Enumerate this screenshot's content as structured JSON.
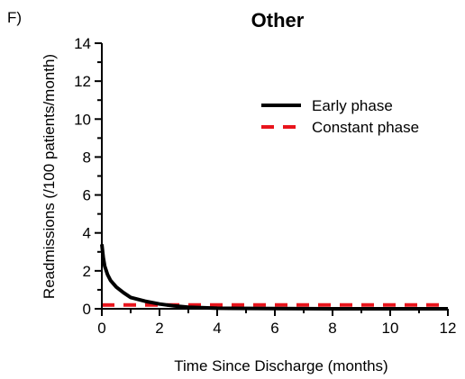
{
  "panel_label": "F)",
  "chart_data": {
    "type": "line",
    "title": "Other",
    "xlabel": "Time Since Discharge (months)",
    "ylabel": "Readmissions (/100 patients/month)",
    "xlim": [
      0,
      12
    ],
    "ylim": [
      0,
      14
    ],
    "x_ticks": [
      0,
      2,
      4,
      6,
      8,
      10,
      12
    ],
    "y_ticks": [
      0,
      2,
      4,
      6,
      8,
      10,
      12,
      14
    ],
    "legend_position": "top-right",
    "series": [
      {
        "name": "Early phase",
        "color": "#000000",
        "style": "solid",
        "x": [
          0.0,
          0.05,
          0.1,
          0.2,
          0.3,
          0.5,
          0.75,
          1.0,
          1.5,
          2.0,
          2.5,
          3.0,
          4.0,
          6.0,
          8.0,
          10.0,
          12.0
        ],
        "y": [
          3.4,
          2.7,
          2.25,
          1.8,
          1.5,
          1.15,
          0.85,
          0.6,
          0.4,
          0.25,
          0.15,
          0.08,
          0.03,
          0.01,
          0.0,
          0.0,
          0.0
        ]
      },
      {
        "name": "Constant phase",
        "color": "#e8141c",
        "style": "dashed",
        "x": [
          0,
          12
        ],
        "y": [
          0.2,
          0.2
        ]
      }
    ]
  }
}
